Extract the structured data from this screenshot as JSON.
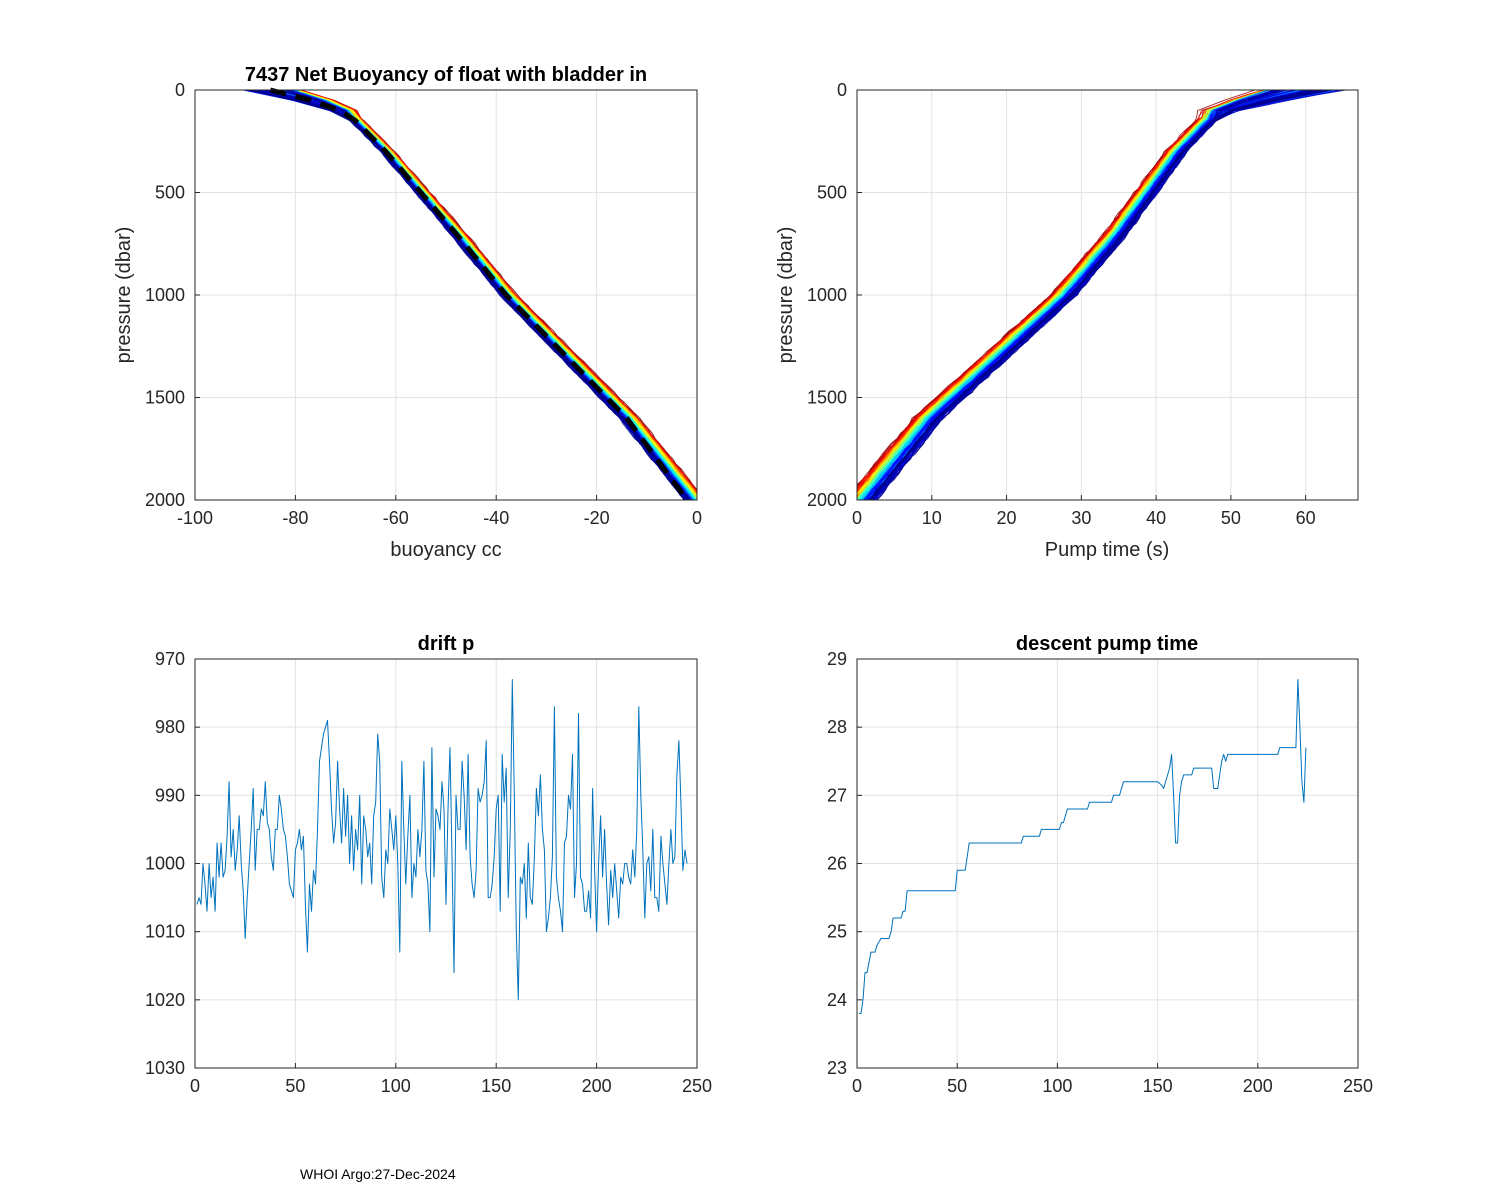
{
  "footer": "WHOI Argo:27-Dec-2024",
  "chart_data": [
    {
      "id": "buoyancy",
      "type": "line",
      "title": "7437 Net Buoyancy of float with bladder in",
      "xlabel": "buoyancy cc",
      "ylabel": "pressure (dbar)",
      "xlim": [
        -100,
        0
      ],
      "ylim": [
        0,
        2000
      ],
      "y_reversed": true,
      "xticks": [
        -100,
        -80,
        -60,
        -40,
        -20,
        0
      ],
      "yticks": [
        0,
        500,
        1000,
        1500,
        2000
      ],
      "grid": true,
      "colormap": "jet",
      "n_profiles": 225,
      "base_profile": {
        "p": [
          0,
          50,
          100,
          150,
          300,
          500,
          700,
          1000,
          1300,
          1600,
          2000
        ],
        "x": [
          -85,
          -77,
          -71,
          -68,
          -62,
          -55,
          -48,
          -38,
          -26,
          -14,
          -1
        ]
      },
      "mean_profile": {
        "p": [
          0,
          50,
          100,
          150,
          300,
          500,
          700,
          1000,
          1300,
          1600,
          2000
        ],
        "x": [
          -85,
          -77,
          -71,
          -68,
          -62,
          -55,
          -48,
          -38,
          -26,
          -14,
          -2
        ],
        "color": "#000000",
        "style": "dashed"
      }
    },
    {
      "id": "pumptime",
      "type": "line",
      "title": "",
      "xlabel": "Pump time (s)",
      "ylabel": "pressure (dbar)",
      "xlim": [
        0,
        67
      ],
      "ylim": [
        0,
        2000
      ],
      "y_reversed": true,
      "xticks": [
        0,
        10,
        20,
        30,
        40,
        50,
        60
      ],
      "yticks": [
        0,
        500,
        1000,
        1500,
        2000
      ],
      "grid": true,
      "colormap": "jet",
      "n_profiles": 225,
      "base_profile": {
        "p": [
          0,
          50,
          100,
          150,
          300,
          500,
          700,
          1000,
          1300,
          1600,
          2000
        ],
        "x": [
          60,
          54,
          49,
          47,
          43,
          39,
          35,
          28,
          19,
          10,
          1
        ]
      }
    },
    {
      "id": "driftp",
      "type": "line",
      "title": "drift p",
      "xlabel": "",
      "ylabel": "",
      "xlim": [
        0,
        250
      ],
      "ylim": [
        970,
        1030
      ],
      "y_reversed": true,
      "xticks": [
        0,
        50,
        100,
        150,
        200,
        250
      ],
      "yticks": [
        970,
        980,
        990,
        1000,
        1010,
        1020,
        1030
      ],
      "grid": true,
      "series": [
        {
          "name": "drift p",
          "color": "#0072BD",
          "values": [
            1006,
            1005,
            1006,
            1000,
            1003,
            1007,
            1000,
            1005,
            1002,
            1007,
            997,
            1002,
            997,
            1002,
            1001,
            996,
            988,
            999,
            995,
            1001,
            998,
            993,
            1000,
            1004,
            1011,
            1005,
            1000,
            995,
            989,
            1001,
            995,
            995,
            992,
            993,
            988,
            994,
            995,
            999,
            1001,
            995,
            995,
            990,
            992,
            995,
            996,
            999,
            1003,
            1004,
            1005,
            998,
            997,
            995,
            998,
            996,
            1006,
            1013,
            1003,
            1007,
            1001,
            1003,
            995,
            985,
            983,
            981,
            980,
            979,
            985,
            992,
            997,
            994,
            985,
            992,
            997,
            989,
            996,
            990,
            1000,
            993,
            1001,
            995,
            998,
            990,
            1003,
            993,
            995,
            999,
            997,
            1003,
            993,
            991,
            981,
            985,
            1002,
            1005,
            998,
            1000,
            992,
            995,
            998,
            993,
            1000,
            1013,
            985,
            995,
            1003,
            996,
            990,
            1005,
            1000,
            1002,
            995,
            999,
            995,
            985,
            1001,
            1003,
            1010,
            983,
            1002,
            992,
            993,
            995,
            988,
            992,
            1006,
            992,
            983,
            999,
            1016,
            990,
            995,
            995,
            985,
            990,
            998,
            984,
            999,
            1003,
            1005,
            1001,
            989,
            991,
            990,
            988,
            982,
            1005,
            1005,
            1003,
            999,
            992,
            990,
            1007,
            984,
            991,
            986,
            1005,
            995,
            973,
            990,
            1010,
            1020,
            1002,
            1003,
            1000,
            1008,
            997,
            1005,
            1006,
            999,
            989,
            993,
            987,
            995,
            998,
            1010,
            1008,
            1005,
            999,
            977,
            1002,
            1005,
            1007,
            1010,
            997,
            996,
            990,
            992,
            984,
            1005,
            1000,
            978,
            1002,
            1003,
            1007,
            1007,
            1004,
            1008,
            989,
            1001,
            1010,
            1000,
            993,
            1002,
            995,
            1003,
            1009,
            1001,
            1005,
            1000,
            1004,
            1008,
            1002,
            1003,
            1000,
            1000,
            1002,
            1003,
            998,
            1002,
            995,
            977,
            990,
            998,
            1008,
            1000,
            999,
            1004,
            995,
            1005,
            1005,
            1007,
            996,
            1000,
            1003,
            1006,
            1000,
            995,
            1000,
            999,
            987,
            982,
            991,
            1001,
            998,
            1000
          ]
        }
      ]
    },
    {
      "id": "descentpump",
      "type": "line",
      "title": "descent pump time",
      "xlabel": "",
      "ylabel": "",
      "xlim": [
        0,
        250
      ],
      "ylim": [
        23,
        29
      ],
      "y_reversed": false,
      "xticks": [
        0,
        50,
        100,
        150,
        200,
        250
      ],
      "yticks": [
        23,
        24,
        25,
        26,
        27,
        28,
        29
      ],
      "grid": true,
      "series": [
        {
          "name": "descent pump time",
          "color": "#0072BD",
          "steps": [
            [
              1,
              23.8
            ],
            [
              2,
              23.8
            ],
            [
              3,
              24.0
            ],
            [
              4,
              24.4
            ],
            [
              5,
              24.4
            ],
            [
              7,
              24.7
            ],
            [
              9,
              24.7
            ],
            [
              10,
              24.8
            ],
            [
              12,
              24.9
            ],
            [
              16,
              24.9
            ],
            [
              17,
              25.0
            ],
            [
              18,
              25.2
            ],
            [
              22,
              25.2
            ],
            [
              23,
              25.3
            ],
            [
              24,
              25.3
            ],
            [
              25,
              25.6
            ],
            [
              49,
              25.6
            ],
            [
              50,
              25.9
            ],
            [
              54,
              25.9
            ],
            [
              56,
              26.3
            ],
            [
              82,
              26.3
            ],
            [
              83,
              26.4
            ],
            [
              91,
              26.4
            ],
            [
              92,
              26.5
            ],
            [
              101,
              26.5
            ],
            [
              102,
              26.6
            ],
            [
              103,
              26.6
            ],
            [
              104,
              26.7
            ],
            [
              105,
              26.8
            ],
            [
              115,
              26.8
            ],
            [
              116,
              26.9
            ],
            [
              127,
              26.9
            ],
            [
              128,
              27.0
            ],
            [
              131,
              27.0
            ],
            [
              133,
              27.2
            ],
            [
              150,
              27.2
            ],
            [
              152,
              27.15
            ],
            [
              153,
              27.1
            ],
            [
              156,
              27.4
            ],
            [
              157,
              27.6
            ],
            [
              158,
              27.0
            ],
            [
              159,
              26.3
            ],
            [
              160,
              26.3
            ],
            [
              161,
              27.0
            ],
            [
              162,
              27.2
            ],
            [
              163,
              27.3
            ],
            [
              167,
              27.3
            ],
            [
              168,
              27.4
            ],
            [
              177,
              27.4
            ],
            [
              178,
              27.1
            ],
            [
              180,
              27.1
            ],
            [
              181,
              27.3
            ],
            [
              182,
              27.5
            ],
            [
              183,
              27.6
            ],
            [
              184,
              27.5
            ],
            [
              185,
              27.6
            ],
            [
              210,
              27.6
            ],
            [
              211,
              27.7
            ],
            [
              219,
              27.7
            ],
            [
              220,
              28.7
            ],
            [
              221,
              28.0
            ],
            [
              222,
              27.2
            ],
            [
              223,
              26.9
            ],
            [
              224,
              27.7
            ]
          ]
        }
      ]
    }
  ]
}
